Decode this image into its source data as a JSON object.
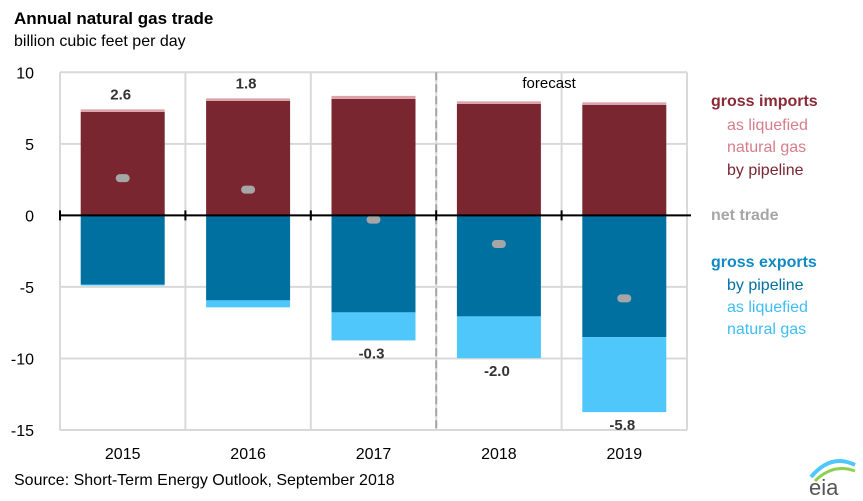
{
  "title": "Annual natural gas trade",
  "subtitle": "billion cubic feet per day",
  "source": "Short-Term Energy Outlook, September 2018",
  "colors": {
    "imports_pipeline": "#7a2631",
    "imports_lng": "#dca2a9",
    "exports_pipeline": "#0070a0",
    "exports_lng": "#4fc7fb",
    "net": "#a6a6a6"
  },
  "legend": {
    "imports": "gross imports",
    "imports_lng": "as liquefied",
    "imports_lng2": "natural gas",
    "imports_pipeline": "by pipeline",
    "net": "net trade",
    "exports": "gross exports",
    "exports_pipeline": "by pipeline",
    "exports_lng": "as liquefied",
    "exports_lng2": "natural gas"
  },
  "chart_data": {
    "type": "bar",
    "title": "Annual natural gas trade",
    "ylabel": "billion cubic feet per day",
    "ylim": [
      -15,
      10
    ],
    "yticks": [
      10,
      5,
      0,
      -5,
      -10,
      -15
    ],
    "grid": true,
    "legend_position": "right",
    "annotation": "forecast",
    "forecast_start": "2018",
    "categories": [
      "2015",
      "2016",
      "2017",
      "2018",
      "2019"
    ],
    "series": [
      {
        "name": "gross imports by pipeline",
        "values": [
          7.23,
          8.0,
          8.14,
          7.79,
          7.72
        ]
      },
      {
        "name": "gross imports as liquefied natural gas",
        "values": [
          0.18,
          0.18,
          0.21,
          0.18,
          0.18
        ]
      },
      {
        "name": "gross exports by pipeline",
        "values": [
          -4.83,
          -5.94,
          -6.78,
          -7.06,
          -8.51
        ]
      },
      {
        "name": "gross exports as liquefied natural gas",
        "values": [
          -0.07,
          -0.49,
          -1.96,
          -2.92,
          -5.24
        ]
      },
      {
        "name": "net trade",
        "values": [
          2.6,
          1.8,
          -0.3,
          -2.0,
          -5.8
        ]
      }
    ],
    "net_labels": [
      "2.6",
      "1.8",
      "-0.3",
      "-2.0",
      "-5.8"
    ]
  }
}
